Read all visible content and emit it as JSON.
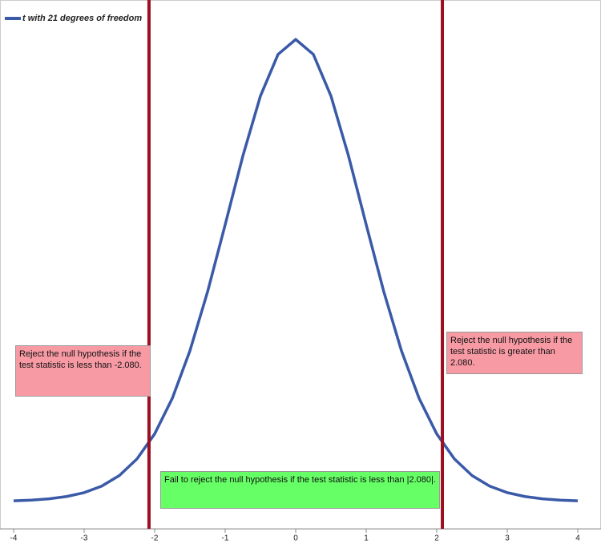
{
  "chart_data": {
    "type": "line",
    "x": [
      -4,
      -3.75,
      -3.5,
      -3.25,
      -3,
      -2.75,
      -2.5,
      -2.25,
      -2,
      -1.75,
      -1.5,
      -1.25,
      -1,
      -0.75,
      -0.5,
      -0.25,
      0,
      0.25,
      0.5,
      0.75,
      1,
      1.25,
      1.5,
      1.75,
      2,
      2.25,
      2.5,
      2.75,
      3,
      3.25,
      3.5,
      3.75,
      4
    ],
    "series": [
      {
        "name": "t with 21 degrees of freedom",
        "color": "#3a5aa8",
        "values": [
          0.0008,
          0.0014,
          0.0025,
          0.0045,
          0.0078,
          0.0134,
          0.0224,
          0.0366,
          0.0579,
          0.0882,
          0.1287,
          0.179,
          0.2363,
          0.2947,
          0.346,
          0.3815,
          0.3942,
          0.3815,
          0.346,
          0.2947,
          0.2363,
          0.179,
          0.1287,
          0.0882,
          0.0579,
          0.0366,
          0.0224,
          0.0134,
          0.0078,
          0.0045,
          0.0025,
          0.0014,
          0.0008
        ]
      }
    ],
    "critical_values": [
      -2.08,
      2.08
    ],
    "critical_color": "#9b1020",
    "annotations": [
      "Reject the null hypothesis if the test statistic is less than -2.080.",
      "Reject the null hypothesis if the test statistic is greater than 2.080.",
      "Fail to reject the null hypothesis if the test statistic is less than |2.080|."
    ],
    "xlim": [
      -4,
      4
    ],
    "xticks": [
      -4,
      -3,
      -2,
      -1,
      0,
      1,
      2,
      3,
      4
    ],
    "ylim": [
      -0.023,
      0.421
    ]
  }
}
